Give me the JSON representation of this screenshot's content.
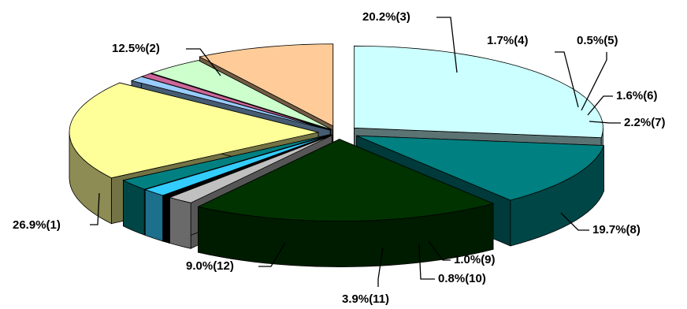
{
  "chart_data": {
    "type": "pie",
    "style": "3d-exploded",
    "slices": [
      {
        "index": 1,
        "value": 26.9,
        "label": "26.9%(1)",
        "color": "#ccffff"
      },
      {
        "index": 2,
        "value": 12.5,
        "label": "12.5%(2)",
        "color": "#008080"
      },
      {
        "index": 3,
        "value": 20.2,
        "label": "20.2%(3)",
        "color": "#003300"
      },
      {
        "index": 4,
        "value": 1.7,
        "label": "1.7%(4)",
        "color": "#c0c0c0"
      },
      {
        "index": 5,
        "value": 0.5,
        "label": "0.5%(5)",
        "color": "#000000"
      },
      {
        "index": 6,
        "value": 1.6,
        "label": "1.6%(6)",
        "color": "#33ccff"
      },
      {
        "index": 7,
        "value": 2.2,
        "label": "2.2%(7)",
        "color": "#008080"
      },
      {
        "index": 8,
        "value": 19.7,
        "label": "19.7%(8)",
        "color": "#ffff99"
      },
      {
        "index": 9,
        "value": 1.0,
        "label": "1.0%(9)",
        "color": "#99ccff"
      },
      {
        "index": 10,
        "value": 0.8,
        "label": "0.8%(10)",
        "color": "#cc6699"
      },
      {
        "index": 11,
        "value": 3.9,
        "label": "3.9%(11)",
        "color": "#ccffcc"
      },
      {
        "index": 12,
        "value": 9.0,
        "label": "9.0%(12)",
        "color": "#ffcc99"
      }
    ],
    "legend": false
  }
}
